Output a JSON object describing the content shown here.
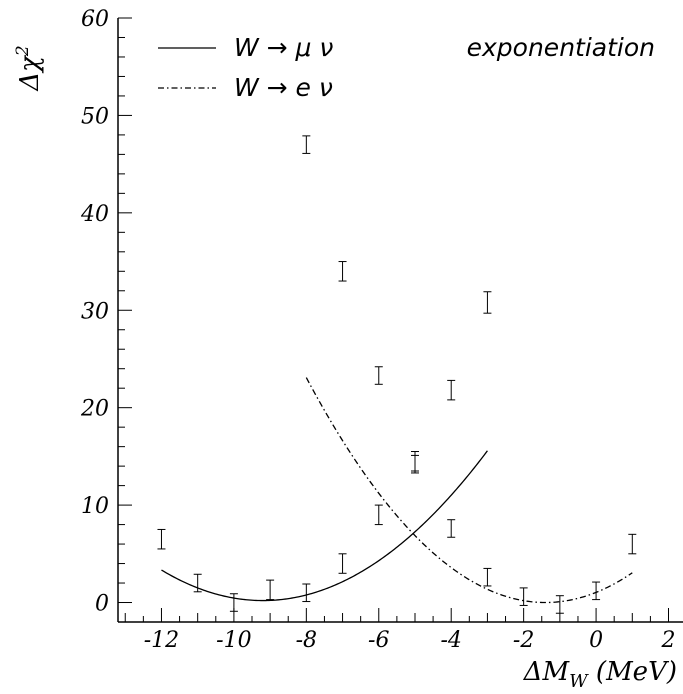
{
  "chart_data": {
    "type": "line",
    "xlabel": "ΔM_W (MeV)",
    "ylabel": "Δχ²",
    "xlim": [
      -13.2,
      2.4
    ],
    "ylim": [
      -2,
      60
    ],
    "x_ticks": [
      "-12",
      "-10",
      "-8",
      "-6",
      "-4",
      "-2",
      "0",
      "2"
    ],
    "y_ticks": [
      "0",
      "10",
      "20",
      "30",
      "40",
      "50",
      "60"
    ],
    "annotation": "exponentiation",
    "legend_position": "top-left",
    "grid": false,
    "series": [
      {
        "name": "W → μ ν",
        "line_style": "solid",
        "x": [
          -12,
          -11,
          -10,
          -9,
          -8,
          -7,
          -6,
          -5,
          -4,
          -3
        ],
        "y": [
          6.5,
          2.0,
          0.0,
          1.3,
          1.0,
          4.0,
          9.0,
          14.5,
          21.8,
          30.8
        ],
        "yerr": [
          1.0,
          0.9,
          0.9,
          1.0,
          0.9,
          1.0,
          1.0,
          1.0,
          1.0,
          1.1
        ],
        "fit": {
          "model": "quadratic",
          "a": 0.4,
          "x0": -9.2,
          "c": 0.2,
          "x_range": [
            -12,
            -3
          ]
        }
      },
      {
        "name": "W → e ν",
        "line_style": "dash-dot",
        "x": [
          -8,
          -7,
          -6,
          -5,
          -4,
          -3,
          -2,
          -1,
          0,
          1
        ],
        "y": [
          47.0,
          34.0,
          23.3,
          14.2,
          7.6,
          2.6,
          0.6,
          -0.2,
          1.2,
          6.0
        ],
        "yerr": [
          0.9,
          1.0,
          0.9,
          0.9,
          0.9,
          0.9,
          0.9,
          0.9,
          0.9,
          1.0
        ],
        "fit": {
          "model": "quadratic",
          "a": 0.53,
          "x0": -1.4,
          "c": 0.0,
          "x_range": [
            -8,
            1
          ]
        }
      }
    ]
  }
}
